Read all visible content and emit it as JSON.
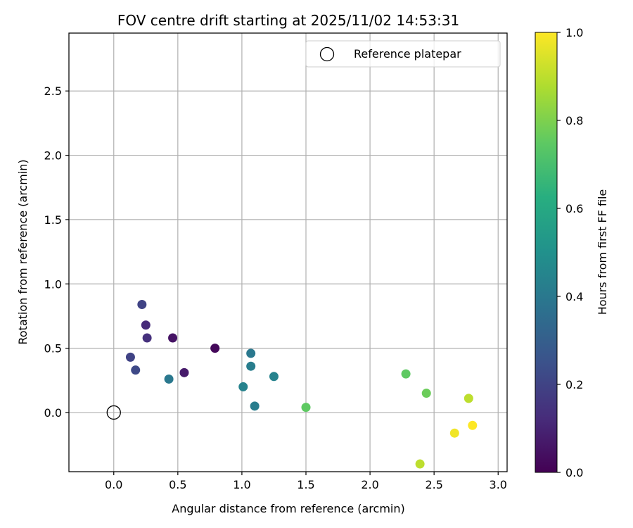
{
  "chart_data": {
    "type": "scatter",
    "title": "FOV centre drift starting at 2025/11/02 14:53:31",
    "xlabel": "Angular distance from reference (arcmin)",
    "ylabel": "Rotation from reference (arcmin)",
    "xlim": [
      -0.35,
      3.07
    ],
    "ylim": [
      -0.46,
      2.95
    ],
    "xticks": [
      "0.0",
      "0.5",
      "1.0",
      "1.5",
      "2.0",
      "2.5",
      "3.0"
    ],
    "yticks": [
      "0.0",
      "0.5",
      "1.0",
      "1.5",
      "2.0",
      "2.5"
    ],
    "grid": true,
    "legend": {
      "label": "Reference platepar",
      "location": "upper right"
    },
    "reference_point": {
      "x": 0.0,
      "y": 0.0
    },
    "colorbar": {
      "label": "Hours from first FF file",
      "range": [
        0.0,
        1.0
      ],
      "ticks": [
        "0.0",
        "0.2",
        "0.4",
        "0.6",
        "0.8",
        "1.0"
      ],
      "colormap": "viridis"
    },
    "points": [
      {
        "x": 0.46,
        "y": 0.58,
        "c": 0.05
      },
      {
        "x": 0.79,
        "y": 0.5,
        "c": 0.02
      },
      {
        "x": 0.55,
        "y": 0.31,
        "c": 0.07
      },
      {
        "x": 0.25,
        "y": 0.68,
        "c": 0.12
      },
      {
        "x": 0.26,
        "y": 0.58,
        "c": 0.14
      },
      {
        "x": 0.22,
        "y": 0.84,
        "c": 0.2
      },
      {
        "x": 0.13,
        "y": 0.43,
        "c": 0.2
      },
      {
        "x": 0.17,
        "y": 0.33,
        "c": 0.22
      },
      {
        "x": 0.43,
        "y": 0.26,
        "c": 0.4
      },
      {
        "x": 1.07,
        "y": 0.46,
        "c": 0.4
      },
      {
        "x": 1.07,
        "y": 0.36,
        "c": 0.42
      },
      {
        "x": 1.01,
        "y": 0.2,
        "c": 0.44
      },
      {
        "x": 1.1,
        "y": 0.05,
        "c": 0.42
      },
      {
        "x": 1.25,
        "y": 0.28,
        "c": 0.44
      },
      {
        "x": 1.5,
        "y": 0.04,
        "c": 0.75
      },
      {
        "x": 2.28,
        "y": 0.3,
        "c": 0.75
      },
      {
        "x": 2.44,
        "y": 0.15,
        "c": 0.77
      },
      {
        "x": 2.77,
        "y": 0.11,
        "c": 0.9
      },
      {
        "x": 2.39,
        "y": -0.4,
        "c": 0.9
      },
      {
        "x": 2.66,
        "y": -0.16,
        "c": 0.98
      },
      {
        "x": 2.8,
        "y": -0.1,
        "c": 1.0
      }
    ]
  }
}
